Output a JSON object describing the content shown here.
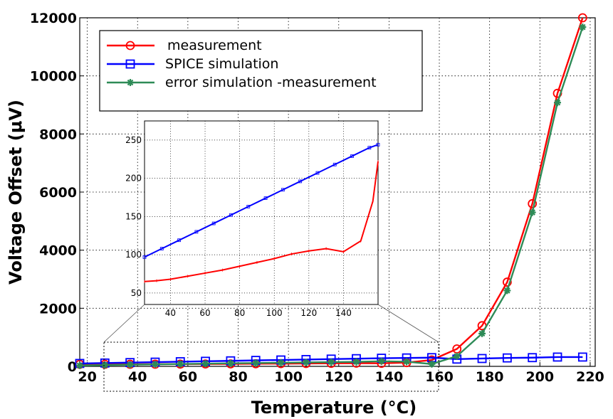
{
  "chart_data": [
    {
      "type": "line",
      "title": "",
      "xlabel": "Temperature (°C)",
      "ylabel": "Voltage Offset (μV)",
      "xlim": [
        17,
        222
      ],
      "ylim": [
        0,
        12000
      ],
      "xticks": [
        20,
        40,
        60,
        80,
        100,
        120,
        140,
        160,
        180,
        200,
        220
      ],
      "yticks": [
        0,
        2000,
        4000,
        6000,
        8000,
        10000,
        12000
      ],
      "grid": true,
      "legend_position": "top-left",
      "series": [
        {
          "name": "measurement",
          "color": "#ff0000",
          "marker": "circle",
          "x": [
            17,
            27,
            37,
            47,
            57,
            67,
            77,
            87,
            97,
            107,
            117,
            127,
            137,
            147,
            157,
            167,
            177,
            187,
            197,
            207,
            217
          ],
          "y": [
            70,
            70,
            72,
            75,
            78,
            82,
            85,
            90,
            95,
            100,
            105,
            110,
            105,
            130,
            220,
            600,
            1400,
            2900,
            5600,
            9400,
            12000
          ]
        },
        {
          "name": "SPICE simulation",
          "color": "#0000ff",
          "marker": "square",
          "x": [
            17,
            27,
            37,
            47,
            57,
            67,
            77,
            87,
            97,
            107,
            117,
            127,
            137,
            147,
            157,
            167,
            177,
            187,
            197,
            207,
            217
          ],
          "y": [
            100,
            115,
            130,
            145,
            160,
            175,
            190,
            205,
            220,
            235,
            250,
            265,
            280,
            290,
            300,
            250,
            270,
            290,
            300,
            320,
            320
          ]
        },
        {
          "name": "error simulation -measurement",
          "color": "#2e8b57",
          "marker": "star",
          "x": [
            17,
            27,
            37,
            47,
            57,
            67,
            77,
            87,
            97,
            107,
            117,
            127,
            137,
            147,
            157,
            167,
            177,
            187,
            197,
            207,
            217
          ],
          "y": [
            30,
            45,
            58,
            70,
            82,
            93,
            105,
            115,
            125,
            135,
            145,
            155,
            175,
            160,
            80,
            350,
            1130,
            2610,
            5300,
            9080,
            11680
          ]
        }
      ]
    },
    {
      "type": "line",
      "title": "",
      "inset": true,
      "xlim": [
        25,
        160
      ],
      "ylim": [
        35,
        275
      ],
      "xticks": [
        40,
        60,
        80,
        100,
        120,
        140
      ],
      "yticks": [
        50,
        100,
        150,
        200,
        250
      ],
      "grid": true,
      "series": [
        {
          "color": "#0000ff",
          "marker": "square",
          "x": [
            25,
            35,
            45,
            55,
            65,
            75,
            85,
            95,
            105,
            115,
            125,
            135,
            145,
            155,
            160
          ],
          "y": [
            97,
            108,
            119,
            130,
            141,
            152,
            163,
            174,
            185,
            196,
            207,
            218,
            229,
            240,
            244
          ]
        },
        {
          "color": "#ff0000",
          "marker": "tick",
          "x": [
            25,
            32,
            40,
            50,
            60,
            70,
            80,
            90,
            100,
            110,
            120,
            130,
            140,
            150,
            157,
            160
          ],
          "y": [
            65,
            66,
            68,
            72,
            76,
            80,
            85,
            90,
            95,
            101,
            105,
            108,
            104,
            118,
            170,
            222
          ]
        }
      ]
    }
  ]
}
